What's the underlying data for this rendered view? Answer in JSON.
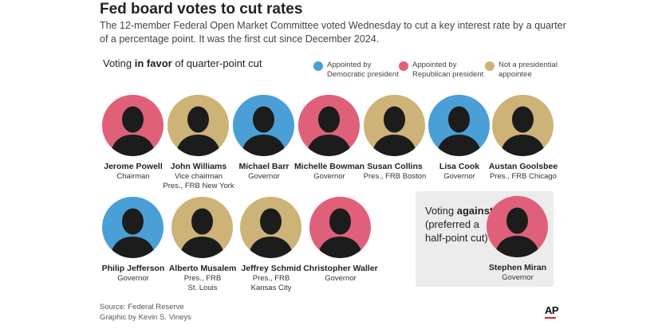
{
  "header": {
    "title": "Fed board votes to cut rates",
    "subtitle": "The 12-member Federal Open Market Committee voted Wednesday to cut a key interest rate by a quarter of a percentage point. It was the first cut since December 2024."
  },
  "section": {
    "favor_prefix": "Voting ",
    "favor_bold": "in favor",
    "favor_suffix": " of quarter-point cut"
  },
  "legend": [
    {
      "label": "Appointed by Democratic president",
      "color": "#4a9fd6"
    },
    {
      "label": "Appointed by Republican president",
      "color": "#e0607a"
    },
    {
      "label": "Not a presidential appointee",
      "color": "#cdb377"
    }
  ],
  "members_row1": [
    {
      "name": "Jerome Powell",
      "role": "Chairman",
      "color": "#e0607a"
    },
    {
      "name": "John Williams",
      "role": "Vice chairman\nPres., FRB New York",
      "color": "#cdb377"
    },
    {
      "name": "Michael Barr",
      "role": "Governor",
      "color": "#4a9fd6"
    },
    {
      "name": "Michelle Bowman",
      "role": "Governor",
      "color": "#e0607a"
    },
    {
      "name": "Susan Collins",
      "role": "Pres., FRB Boston",
      "color": "#cdb377"
    },
    {
      "name": "Lisa Cook",
      "role": "Governor",
      "color": "#4a9fd6"
    },
    {
      "name": "Austan Goolsbee",
      "role": "Pres., FRB Chicago",
      "color": "#cdb377"
    }
  ],
  "members_row2": [
    {
      "name": "Philip Jefferson",
      "role": "Governor",
      "color": "#4a9fd6"
    },
    {
      "name": "Alberto Musalem",
      "role": "Pres., FRB\nSt. Louis",
      "color": "#cdb377"
    },
    {
      "name": "Jeffrey Schmid",
      "role": "Pres., FRB\nKansas City",
      "color": "#cdb377"
    },
    {
      "name": "Christopher Waller",
      "role": "Governor",
      "color": "#e0607a"
    }
  ],
  "against": {
    "prefix": "Voting ",
    "bold": "against",
    "suffix": " (preferred a half-point cut)",
    "member": {
      "name": "Stephen Miran",
      "role": "Governor",
      "color": "#e0607a"
    }
  },
  "footer": {
    "source": "Source: Federal Reserve",
    "credit": "Graphic by Kevin S. Vineys",
    "logo": "AP"
  }
}
